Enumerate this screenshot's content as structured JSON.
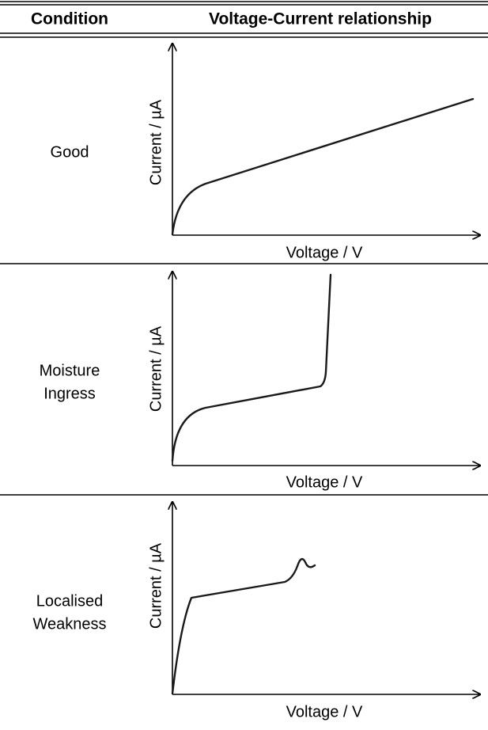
{
  "table": {
    "headers": [
      "Condition",
      "Voltage-Current relationship"
    ],
    "rows": [
      {
        "condition": [
          "Good"
        ],
        "y_label": "Current / µA",
        "x_label": "Voltage / V"
      },
      {
        "condition": [
          "Moisture",
          "Ingress"
        ],
        "y_label": "Current / µA",
        "x_label": "Voltage / V"
      },
      {
        "condition": [
          "Localised",
          "Weakness"
        ],
        "y_label": "Current / µA",
        "x_label": "Voltage / V"
      }
    ]
  }
}
